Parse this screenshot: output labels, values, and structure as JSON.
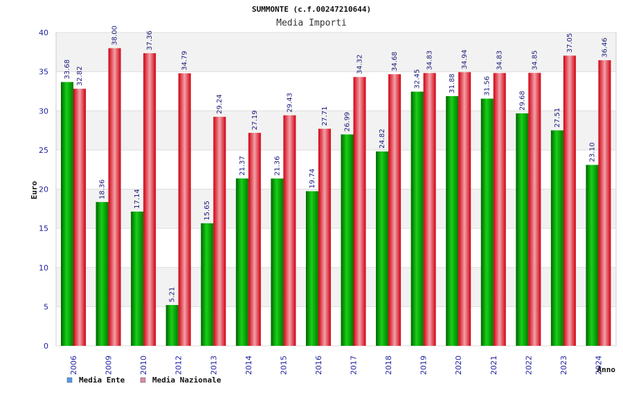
{
  "chart_data": {
    "type": "bar",
    "title": "SUMMONTE (c.f.00247210644)",
    "subtitle": "Media Importi",
    "xlabel": "Anno",
    "ylabel": "Euro",
    "ylim": [
      0,
      40
    ],
    "yticks": [
      0,
      5,
      10,
      15,
      20,
      25,
      30,
      35,
      40
    ],
    "categories": [
      "2006",
      "2009",
      "2010",
      "2012",
      "2013",
      "2014",
      "2015",
      "2016",
      "2017",
      "2018",
      "2019",
      "2020",
      "2021",
      "2022",
      "2023",
      "2024"
    ],
    "series": [
      {
        "name": "Media Ente",
        "values": [
          33.68,
          18.36,
          17.14,
          5.21,
          15.65,
          21.37,
          21.36,
          19.74,
          26.99,
          24.82,
          32.45,
          31.88,
          31.56,
          29.68,
          27.51,
          23.1
        ],
        "labels": [
          "33.68",
          "18.36",
          "17.14",
          "5.21",
          "15.65",
          "21.37",
          "21.36",
          "19.74",
          "26.99",
          "24.82",
          "32.45",
          "31.88",
          "31.56",
          "29.68",
          "27.51",
          "23.10"
        ],
        "color": "#00b000",
        "legend_color": "#5599ee"
      },
      {
        "name": "Media Nazionale",
        "values": [
          32.82,
          38.0,
          37.36,
          34.79,
          29.24,
          27.19,
          29.43,
          27.71,
          34.32,
          34.68,
          34.83,
          34.94,
          34.83,
          34.85,
          37.05,
          36.46
        ],
        "labels": [
          "32.82",
          "38.00",
          "37.36",
          "34.79",
          "29.24",
          "27.19",
          "29.43",
          "27.71",
          "34.32",
          "34.68",
          "34.83",
          "34.94",
          "34.83",
          "34.85",
          "37.05",
          "36.46"
        ],
        "color": "#e01020",
        "legend_color": "#dd88aa"
      }
    ],
    "grid": true,
    "legend_position": "bottom-left"
  }
}
